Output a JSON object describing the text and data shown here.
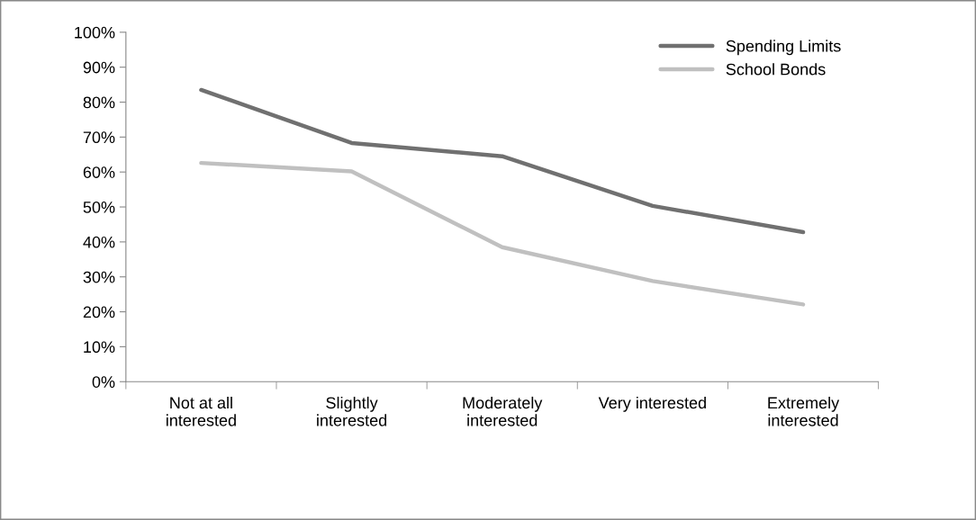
{
  "chart_data": {
    "type": "line",
    "categories": [
      "Not at all\ninterested",
      "Slightly\ninterested",
      "Moderately\ninterested",
      "Very interested",
      "Extremely\ninterested"
    ],
    "series": [
      {
        "name": "Spending Limits",
        "color": "#707070",
        "values": [
          83.5,
          68.3,
          64.5,
          50.3,
          42.8
        ]
      },
      {
        "name": "School Bonds",
        "color": "#c0c0c0",
        "values": [
          62.6,
          60.2,
          38.5,
          28.8,
          22.1
        ]
      }
    ],
    "ylim": [
      0,
      100
    ],
    "yticks": [
      {
        "value": 0,
        "label": "0%"
      },
      {
        "value": 10,
        "label": "10%"
      },
      {
        "value": 20,
        "label": "20%"
      },
      {
        "value": 30,
        "label": "30%"
      },
      {
        "value": 40,
        "label": "40%"
      },
      {
        "value": 50,
        "label": "50%"
      },
      {
        "value": 60,
        "label": "60%"
      },
      {
        "value": 70,
        "label": "70%"
      },
      {
        "value": 80,
        "label": "80%"
      },
      {
        "value": 90,
        "label": "90%"
      },
      {
        "value": 100,
        "label": "100%"
      }
    ],
    "grid": false,
    "legend": "top right",
    "marker": "none",
    "line_style": "solid"
  }
}
